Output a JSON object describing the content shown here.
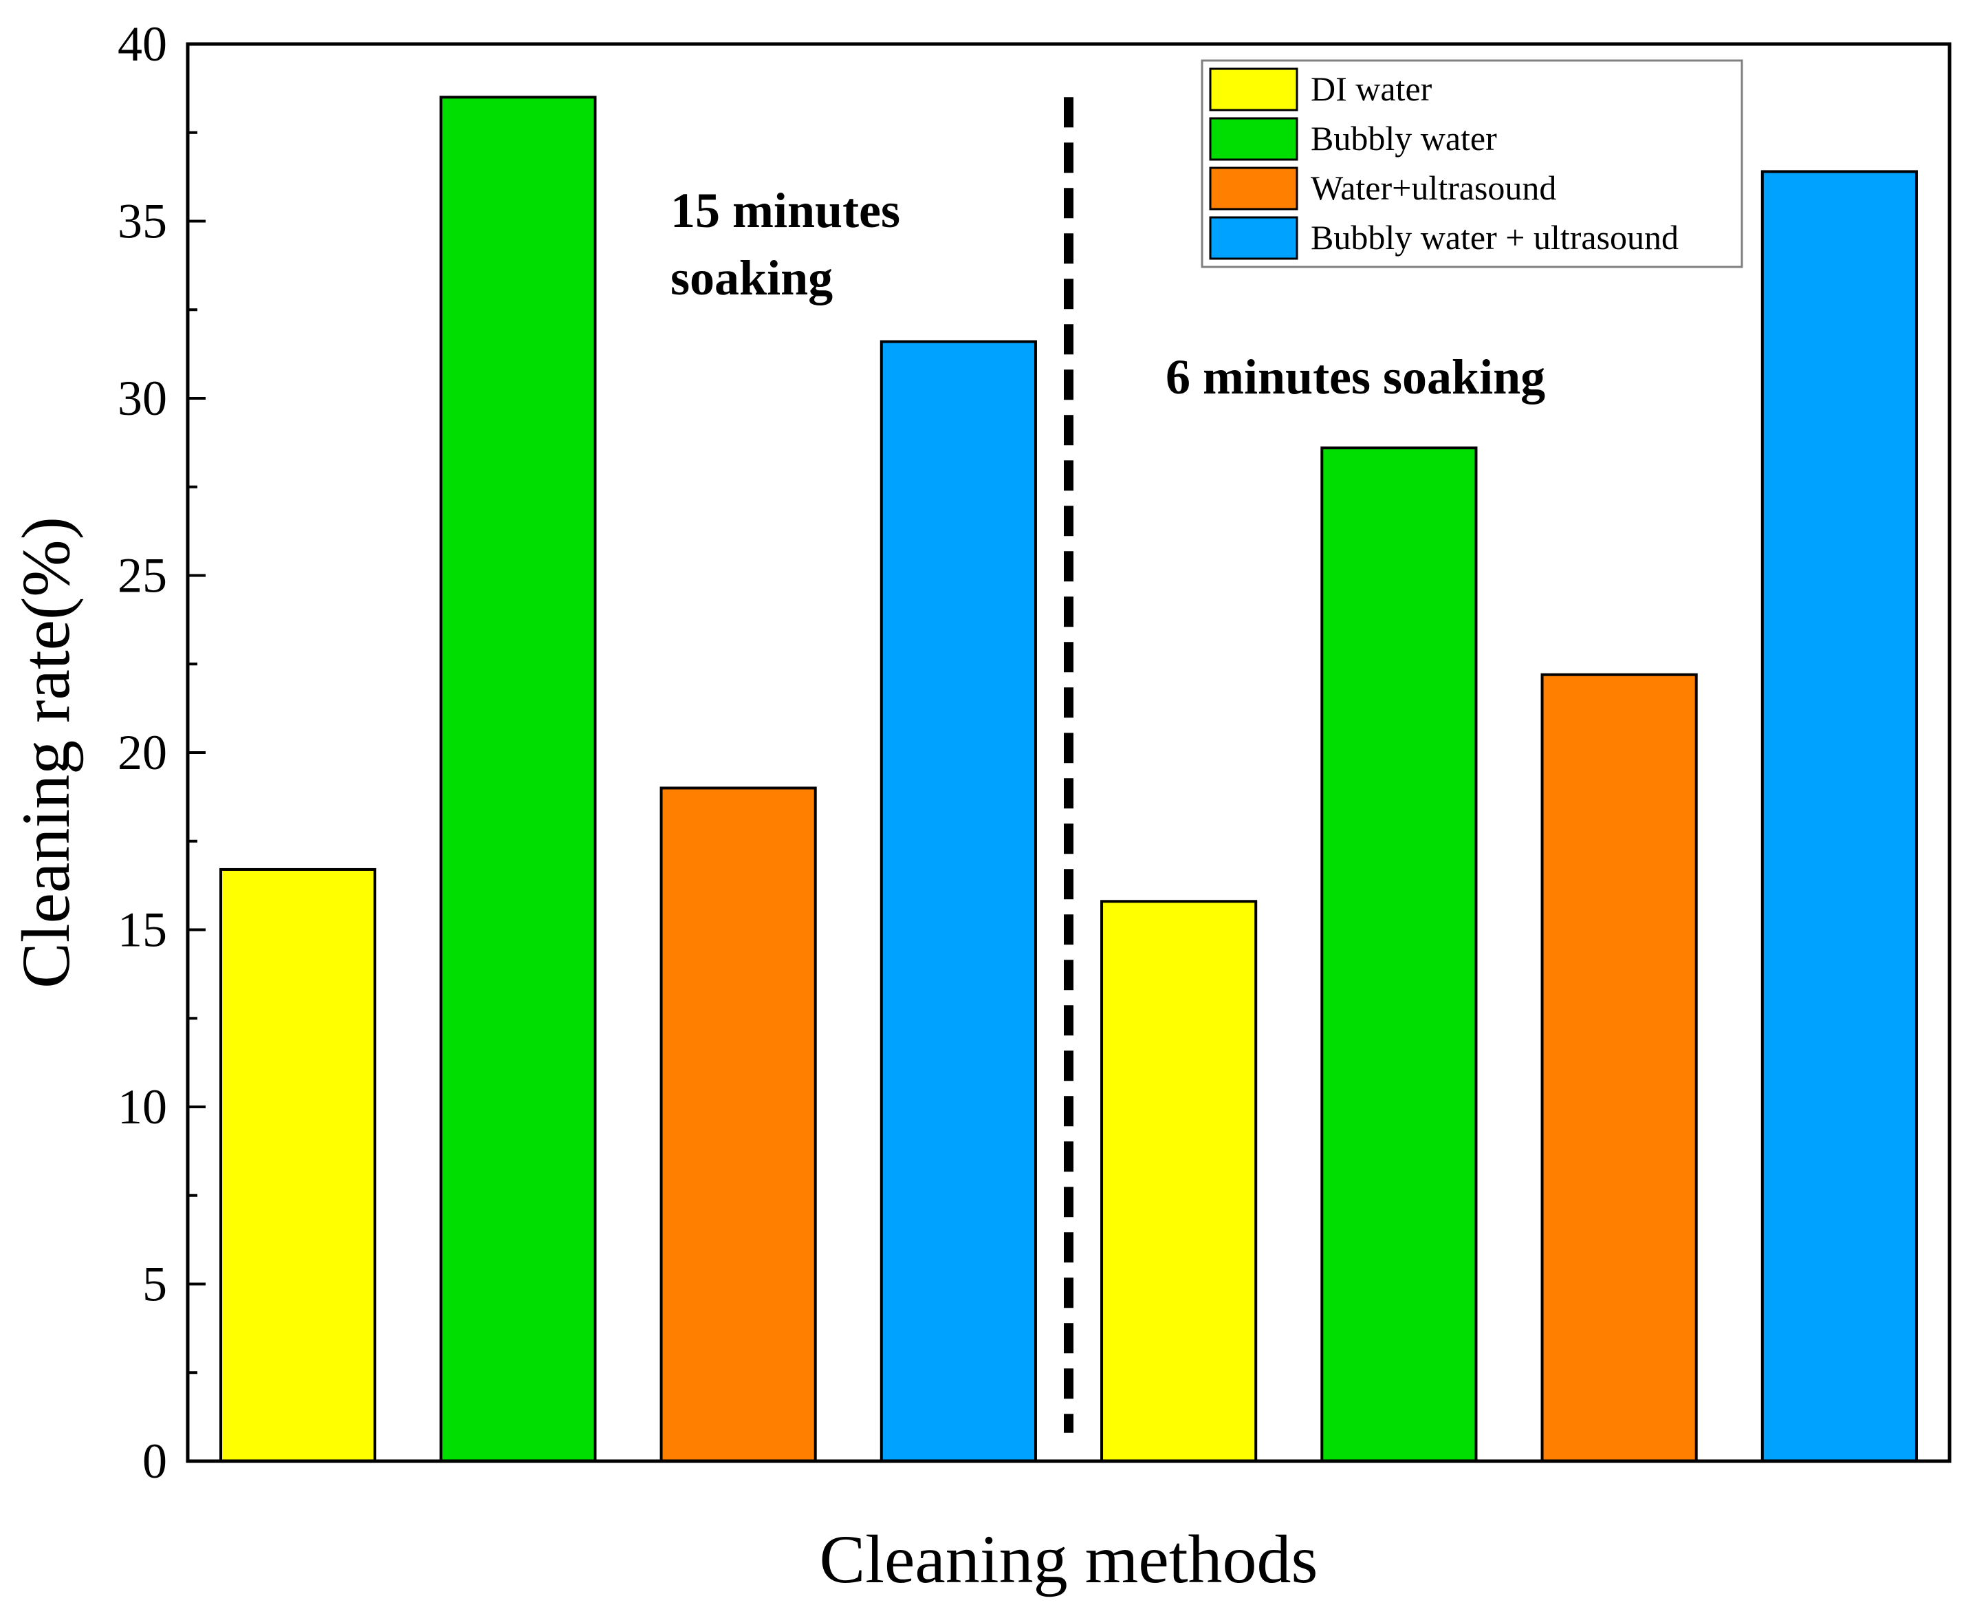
{
  "chart_data": {
    "type": "bar",
    "title": "",
    "xlabel": "Cleaning methods",
    "ylabel": "Cleaning rate(%)",
    "ylim": [
      0,
      40
    ],
    "yticks": [
      "0",
      "5",
      "10",
      "15",
      "20",
      "25",
      "30",
      "35",
      "40"
    ],
    "grid": false,
    "legend_position": "top-right",
    "groups": [
      {
        "annotation": [
          "15 minutes",
          "soaking"
        ],
        "values": [
          16.7,
          38.5,
          19.0,
          31.6
        ]
      },
      {
        "annotation": [
          "6 minutes  soaking"
        ],
        "values": [
          15.8,
          28.6,
          22.2,
          36.4
        ]
      }
    ],
    "series": [
      {
        "name": "DI water",
        "color": "#ffff00"
      },
      {
        "name": "Bubbly water",
        "color": "#00dd00"
      },
      {
        "name": "Water+ultrasound",
        "color": "#ff8000"
      },
      {
        "name": "Bubbly water + ultrasound",
        "color": "#00a2ff"
      }
    ],
    "separator": "dashed vertical line between groups"
  }
}
